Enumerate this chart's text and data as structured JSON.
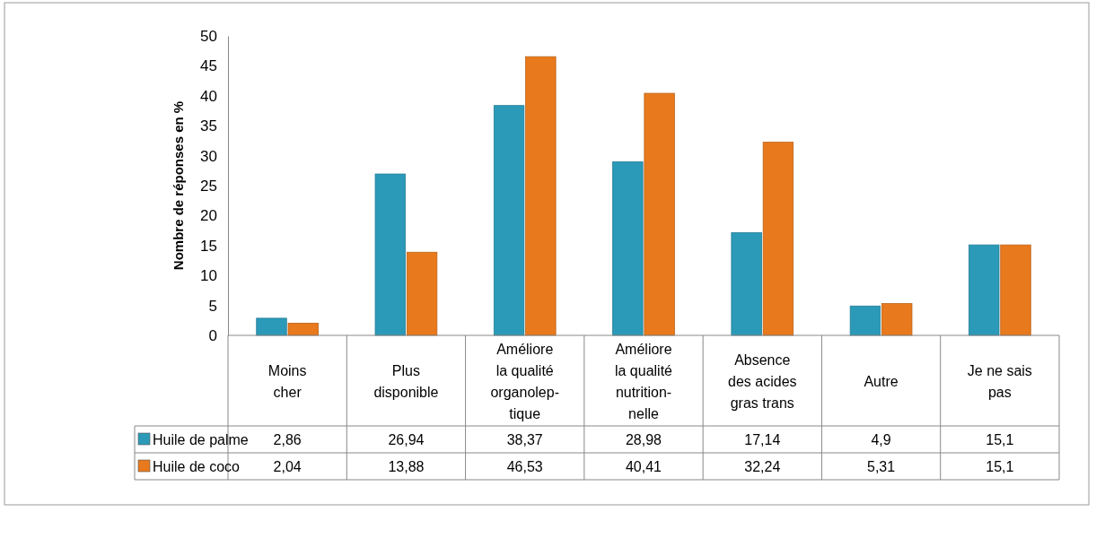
{
  "chart_data": {
    "type": "bar",
    "ylabel": "Nombre de réponses en %",
    "categories": [
      "Moins\ncher",
      "Plus\ndisponible",
      "Améliore\nla qualité\norganolep-\ntique",
      "Améliore\nla qualité\nnutrition-\nnelle",
      "Absence\ndes acides\ngras trans",
      "Autre",
      "Je ne sais\npas"
    ],
    "series": [
      {
        "name": "Huile de palme",
        "color": "#2b9ab8",
        "values": [
          2.86,
          26.94,
          38.37,
          28.98,
          17.14,
          4.9,
          15.1
        ],
        "value_labels": [
          "2,86",
          "26,94",
          "38,37",
          "28,98",
          "17,14",
          "4,9",
          "15,1"
        ]
      },
      {
        "name": "Huile de coco",
        "color": "#e8791c",
        "values": [
          2.04,
          13.88,
          46.53,
          40.41,
          32.24,
          5.31,
          15.1
        ],
        "value_labels": [
          "2,04",
          "13,88",
          "46,53",
          "40,41",
          "32,24",
          "5,31",
          "15,1"
        ]
      }
    ],
    "ylim": [
      0,
      50
    ],
    "yticks": [
      0,
      5,
      10,
      15,
      20,
      25,
      30,
      35,
      40,
      45,
      50
    ],
    "grid": false,
    "legend": "bottom left"
  }
}
